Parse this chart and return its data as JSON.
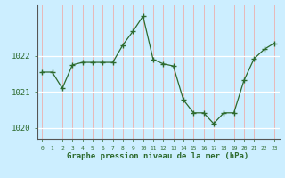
{
  "x": [
    0,
    1,
    2,
    3,
    4,
    5,
    6,
    7,
    8,
    9,
    10,
    11,
    12,
    13,
    14,
    15,
    16,
    17,
    18,
    19,
    20,
    21,
    22,
    23
  ],
  "y": [
    1021.55,
    1021.55,
    1021.1,
    1021.75,
    1021.82,
    1021.82,
    1021.82,
    1021.82,
    1022.3,
    1022.68,
    1023.1,
    1021.9,
    1021.78,
    1021.72,
    1020.78,
    1020.42,
    1020.42,
    1020.12,
    1020.42,
    1020.42,
    1021.32,
    1021.92,
    1022.18,
    1022.35
  ],
  "line_color": "#2d6a2d",
  "marker": "+",
  "marker_color": "#2d6a2d",
  "bg_color": "#cceeff",
  "grid_color_v": "#e8b8b8",
  "grid_color_h": "#ffffff",
  "xlabel": "Graphe pression niveau de la mer (hPa)",
  "xlabel_color": "#2d6a2d",
  "tick_color": "#2d6a2d",
  "label_color": "#2d6a2d",
  "ylim": [
    1019.7,
    1023.4
  ],
  "yticks": [
    1020,
    1021,
    1022
  ],
  "xlim": [
    -0.5,
    23.5
  ],
  "xticks": [
    0,
    1,
    2,
    3,
    4,
    5,
    6,
    7,
    8,
    9,
    10,
    11,
    12,
    13,
    14,
    15,
    16,
    17,
    18,
    19,
    20,
    21,
    22,
    23
  ]
}
